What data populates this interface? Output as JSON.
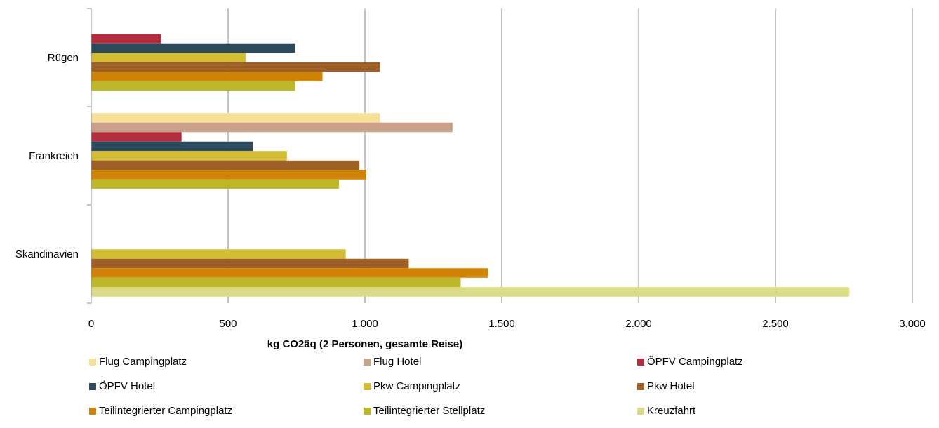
{
  "chart_data": {
    "type": "bar",
    "orientation": "horizontal",
    "categories": [
      "Rügen",
      "Frankreich",
      "Skandinavien"
    ],
    "xlabel": "kg CO2äq (2 Personen, gesamte Reise)",
    "xlim": [
      0,
      3000
    ],
    "xticks": [
      0,
      500,
      1000,
      1500,
      2000,
      2500,
      3000
    ],
    "xtick_labels": [
      "0",
      "500",
      "1.000",
      "1.500",
      "2.000",
      "2.500",
      "3.000"
    ],
    "grid": true,
    "legend_position": "bottom",
    "series": [
      {
        "name": "Flug Campingplatz",
        "color": "#F6DF97",
        "values": [
          null,
          1055,
          null
        ]
      },
      {
        "name": "Flug Hotel",
        "color": "#C9A08A",
        "values": [
          null,
          1320,
          null
        ]
      },
      {
        "name": "ÖPFV Campingplatz",
        "color": "#B42D3C",
        "values": [
          255,
          330,
          null
        ]
      },
      {
        "name": "ÖPFV Hotel",
        "color": "#2E4A5F",
        "values": [
          745,
          590,
          null
        ]
      },
      {
        "name": "Pkw Campingplatz",
        "color": "#D2BB35",
        "values": [
          565,
          715,
          930
        ]
      },
      {
        "name": "Pkw Hotel",
        "color": "#9D6128",
        "values": [
          1055,
          980,
          1160
        ]
      },
      {
        "name": "Teilintegrierter Campingplatz",
        "color": "#D08307",
        "values": [
          845,
          1005,
          1450
        ]
      },
      {
        "name": "Teilintegrierter Stellplatz",
        "color": "#BCB82A",
        "values": [
          745,
          905,
          1350
        ]
      },
      {
        "name": "Kreuzfahrt",
        "color": "#DCDB86",
        "values": [
          null,
          null,
          2770
        ]
      }
    ]
  }
}
